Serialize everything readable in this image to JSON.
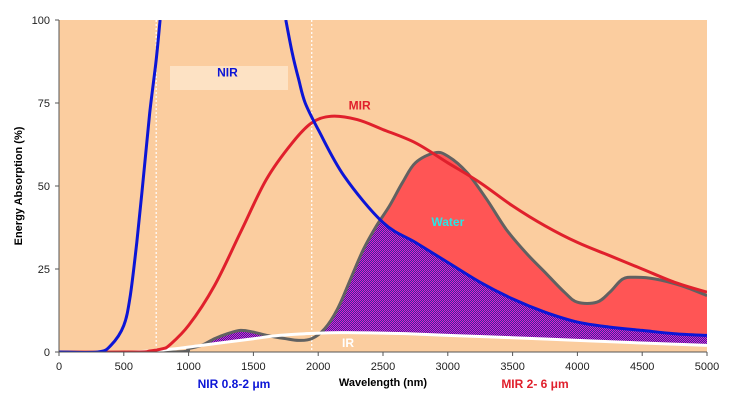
{
  "chart_data": {
    "type": "line",
    "title": "",
    "xlabel": "Wavelength (nm)",
    "ylabel": "Energy Absorption (%)",
    "xlim": [
      0,
      5000
    ],
    "ylim": [
      0,
      100
    ],
    "x_ticks": [
      0,
      500,
      1000,
      1500,
      2000,
      2500,
      3000,
      3500,
      4000,
      4500,
      5000
    ],
    "y_ticks": [
      0,
      25,
      50,
      75,
      100
    ],
    "grid": false,
    "background_color": "#fbcd9f",
    "reference_lines_x": [
      750,
      1950
    ],
    "series": [
      {
        "name": "NIR",
        "color": "#0c15d6",
        "points": [
          [
            0,
            0
          ],
          [
            300,
            0
          ],
          [
            400,
            2
          ],
          [
            500,
            8
          ],
          [
            550,
            17
          ],
          [
            600,
            33
          ],
          [
            650,
            52
          ],
          [
            700,
            72
          ],
          [
            750,
            88
          ],
          [
            780,
            100
          ]
        ],
        "points2": [
          [
            1750,
            100
          ],
          [
            1800,
            90
          ],
          [
            1850,
            82
          ],
          [
            1900,
            75
          ],
          [
            2000,
            67
          ],
          [
            2200,
            53
          ],
          [
            2500,
            39
          ],
          [
            2750,
            33
          ],
          [
            3000,
            27
          ],
          [
            3250,
            21
          ],
          [
            3500,
            16
          ],
          [
            3750,
            12
          ],
          [
            4000,
            9
          ],
          [
            4250,
            7.5
          ],
          [
            4500,
            6.5
          ],
          [
            4750,
            5.5
          ],
          [
            5000,
            5
          ]
        ]
      },
      {
        "name": "MIR",
        "color": "#e0202c",
        "points": [
          [
            0,
            0
          ],
          [
            600,
            0
          ],
          [
            700,
            0.3
          ],
          [
            800,
            1
          ],
          [
            850,
            2
          ],
          [
            1000,
            8
          ],
          [
            1200,
            20
          ],
          [
            1400,
            36
          ],
          [
            1600,
            52
          ],
          [
            1800,
            63
          ],
          [
            1950,
            69
          ],
          [
            2100,
            71
          ],
          [
            2300,
            70
          ],
          [
            2500,
            67
          ],
          [
            2750,
            63
          ],
          [
            3000,
            57
          ],
          [
            3250,
            51
          ],
          [
            3500,
            44
          ],
          [
            3750,
            38
          ],
          [
            4000,
            33
          ],
          [
            4250,
            29
          ],
          [
            4500,
            25
          ],
          [
            4750,
            21
          ],
          [
            5000,
            18
          ]
        ]
      },
      {
        "name": "IR",
        "color": "#ffffff",
        "points": [
          [
            0,
            0
          ],
          [
            500,
            0
          ],
          [
            700,
            0.3
          ],
          [
            900,
            1
          ],
          [
            1100,
            2
          ],
          [
            1300,
            3
          ],
          [
            1500,
            4
          ],
          [
            1700,
            5
          ],
          [
            1900,
            5.5
          ],
          [
            2100,
            5.8
          ],
          [
            2300,
            5.8
          ],
          [
            2500,
            5.7
          ],
          [
            2700,
            5.5
          ],
          [
            3000,
            5
          ],
          [
            3500,
            4.3
          ],
          [
            4000,
            3.5
          ],
          [
            4500,
            2.7
          ],
          [
            5000,
            2
          ]
        ]
      },
      {
        "name": "Water",
        "color": "#616161",
        "points": [
          [
            0,
            0
          ],
          [
            900,
            0
          ],
          [
            1000,
            1
          ],
          [
            1100,
            2
          ],
          [
            1200,
            4
          ],
          [
            1300,
            5.5
          ],
          [
            1400,
            6.5
          ],
          [
            1500,
            6
          ],
          [
            1600,
            5
          ],
          [
            1750,
            4
          ],
          [
            1850,
            3.5
          ],
          [
            1950,
            4
          ],
          [
            2050,
            7
          ],
          [
            2150,
            13
          ],
          [
            2250,
            22
          ],
          [
            2350,
            31
          ],
          [
            2450,
            38
          ],
          [
            2550,
            44
          ],
          [
            2650,
            51
          ],
          [
            2750,
            57
          ],
          [
            2900,
            60
          ],
          [
            3000,
            59
          ],
          [
            3150,
            54
          ],
          [
            3300,
            46
          ],
          [
            3450,
            37
          ],
          [
            3600,
            30
          ],
          [
            3750,
            24
          ],
          [
            3900,
            18
          ],
          [
            4000,
            15
          ],
          [
            4150,
            15
          ],
          [
            4250,
            18
          ],
          [
            4350,
            22
          ],
          [
            4450,
            22.5
          ],
          [
            4600,
            22
          ],
          [
            4800,
            20
          ],
          [
            5000,
            17
          ]
        ]
      }
    ],
    "annotations": [
      {
        "text": "NIR",
        "x": 1300,
        "y": 83,
        "color": "#0c15d6"
      },
      {
        "text": "MIR",
        "x": 2320,
        "y": 73,
        "color": "#e0202c"
      },
      {
        "text": "Water",
        "x": 3000,
        "y": 38,
        "color": "#29e6e6"
      },
      {
        "text": "IR",
        "x": 2230,
        "y": 1.5,
        "color": "#ffffff"
      }
    ],
    "range_labels": [
      {
        "text": "NIR 0.8-2 μm",
        "color": "#0c15d6"
      },
      {
        "text": "MIR 2- 6 μm",
        "color": "#e0202c"
      }
    ]
  }
}
